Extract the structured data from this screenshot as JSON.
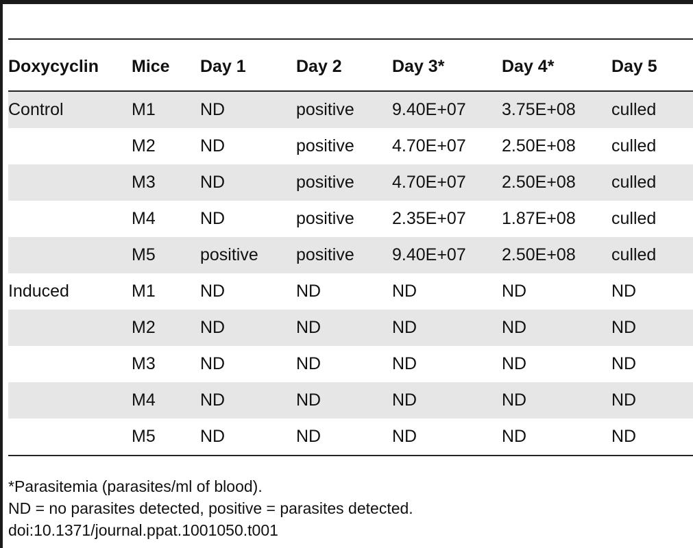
{
  "table": {
    "headers": [
      "Doxycyclin",
      "Mice",
      "Day 1",
      "Day 2",
      "Day 3*",
      "Day 4*",
      "Day 5"
    ],
    "rows": [
      [
        "Control",
        "M1",
        "ND",
        "positive",
        "9.40E+07",
        "3.75E+08",
        "culled"
      ],
      [
        "",
        "M2",
        "ND",
        "positive",
        "4.70E+07",
        "2.50E+08",
        "culled"
      ],
      [
        "",
        "M3",
        "ND",
        "positive",
        "4.70E+07",
        "2.50E+08",
        "culled"
      ],
      [
        "",
        "M4",
        "ND",
        "positive",
        "2.35E+07",
        "1.87E+08",
        "culled"
      ],
      [
        "",
        "M5",
        "positive",
        "positive",
        "9.40E+07",
        "2.50E+08",
        "culled"
      ],
      [
        "Induced",
        "M1",
        "ND",
        "ND",
        "ND",
        "ND",
        "ND"
      ],
      [
        "",
        "M2",
        "ND",
        "ND",
        "ND",
        "ND",
        "ND"
      ],
      [
        "",
        "M3",
        "ND",
        "ND",
        "ND",
        "ND",
        "ND"
      ],
      [
        "",
        "M4",
        "ND",
        "ND",
        "ND",
        "ND",
        "ND"
      ],
      [
        "",
        "M5",
        "ND",
        "ND",
        "ND",
        "ND",
        "ND"
      ]
    ]
  },
  "footnotes": {
    "parasitemia": "*Parasitemia (parasites/ml of blood).",
    "legend": "ND = no parasites detected, positive = parasites detected.",
    "doi": "doi:10.1371/journal.ppat.1001050.t001"
  }
}
